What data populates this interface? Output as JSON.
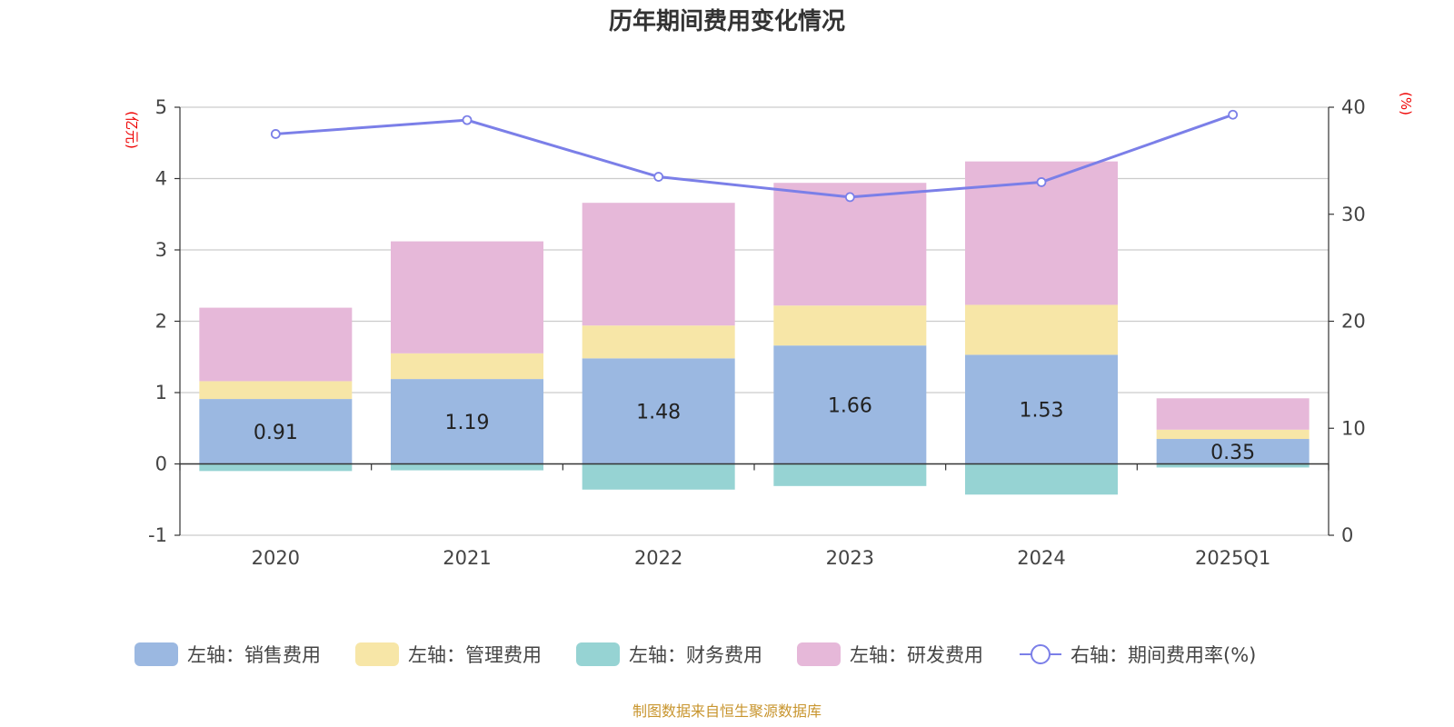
{
  "chart_data": {
    "type": "bar",
    "title": "历年期间费用变化情况",
    "categories": [
      "2020",
      "2021",
      "2022",
      "2023",
      "2024",
      "2025Q1"
    ],
    "left_axis": {
      "unit": "(亿元)",
      "ylim": [
        -1,
        5
      ],
      "ticks": [
        "-1",
        "0",
        "1",
        "2",
        "3",
        "4",
        "5"
      ]
    },
    "right_axis": {
      "unit": "(%)",
      "ylim": [
        0,
        40
      ],
      "ticks": [
        "0",
        "10",
        "20",
        "30",
        "40"
      ]
    },
    "series": [
      {
        "name": "销售费用",
        "legend": "左轴：销售费用",
        "axis": "left",
        "color": "#9bb8e1",
        "values": [
          0.91,
          1.19,
          1.48,
          1.66,
          1.53,
          0.35
        ],
        "labels": [
          "0.91",
          "1.19",
          "1.48",
          "1.66",
          "1.53",
          "0.35"
        ]
      },
      {
        "name": "管理费用",
        "legend": "左轴：管理费用",
        "axis": "left",
        "color": "#f7e6a7",
        "values": [
          0.25,
          0.36,
          0.46,
          0.56,
          0.7,
          0.13
        ]
      },
      {
        "name": "财务费用",
        "legend": "左轴：财务费用",
        "axis": "left",
        "color": "#96d3d3",
        "values": [
          -0.1,
          -0.09,
          -0.36,
          -0.31,
          -0.43,
          -0.05
        ]
      },
      {
        "name": "研发费用",
        "legend": "左轴：研发费用",
        "axis": "left",
        "color": "#e6b8d9",
        "values": [
          1.03,
          1.57,
          1.72,
          1.72,
          2.01,
          0.44
        ]
      },
      {
        "name": "期间费用率(%)",
        "legend": "右轴：期间费用率(%)",
        "axis": "right",
        "type": "line",
        "color": "#7b7fe8",
        "values": [
          37.5,
          38.8,
          33.5,
          31.6,
          33.0,
          39.3
        ]
      }
    ],
    "legend_position": "bottom",
    "grid": true
  },
  "source": "制图数据来自恒生聚源数据库"
}
